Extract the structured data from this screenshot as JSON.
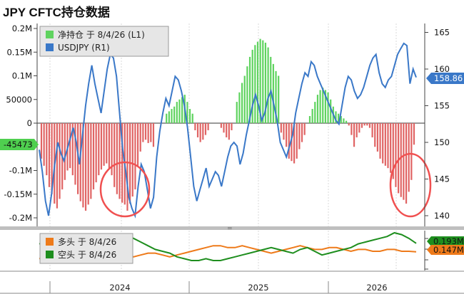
{
  "title": "JPY CFTC持仓数据",
  "colors": {
    "net_positive": "#5fd35f",
    "net_negative": "#e06464",
    "usdjpy": "#3a78c8",
    "long": "#ee7a1a",
    "short": "#1e8e1e",
    "annotation_circle": "#f05050",
    "net_tag": "#4fcf4f",
    "price_tag": "#3a78c8",
    "long_tag": "#ee7a1a",
    "short_tag": "#1e8e1e"
  },
  "chart_data": [
    {
      "type": "bar+line",
      "legend": [
        "净持仓 于 8/4/26 (L1)",
        "USDJPY (R1)"
      ],
      "legend_position": "top-left",
      "y_left_ticks": [
        "0.2M",
        "0.15M",
        "0.1M",
        "50000",
        "0",
        "-50000",
        "-0.1M",
        "-0.15M",
        "-0.2M"
      ],
      "y_left_range": [
        -200000,
        200000
      ],
      "y_right_ticks": [
        "165",
        "160",
        "155",
        "150",
        "145",
        "140"
      ],
      "y_right_range": [
        140,
        165
      ],
      "last_values": {
        "net": "-45473",
        "usdjpy": "158.86"
      },
      "net_positions": [
        -75000,
        -90000,
        -110000,
        -135000,
        -150000,
        -170000,
        -180000,
        -160000,
        -140000,
        -120000,
        -100000,
        -95000,
        -110000,
        -130000,
        -150000,
        -165000,
        -178000,
        -185000,
        -172000,
        -160000,
        -140000,
        -125000,
        -110000,
        -98000,
        -90000,
        -85000,
        -95000,
        -110000,
        -135000,
        -150000,
        -160000,
        -168000,
        -172000,
        -185000,
        -170000,
        -155000,
        -140000,
        -90000,
        -60000,
        -40000,
        -35000,
        -42000,
        -40000,
        -50000,
        0,
        0,
        0,
        0,
        20000,
        25000,
        30000,
        35000,
        45000,
        50000,
        55000,
        60000,
        45000,
        30000,
        20000,
        -15000,
        -30000,
        -40000,
        -35000,
        -25000,
        -15000,
        0,
        0,
        0,
        0,
        -10000,
        -20000,
        -30000,
        -35000,
        -15000,
        0,
        45000,
        65000,
        85000,
        100000,
        120000,
        140000,
        155000,
        165000,
        172000,
        178000,
        175000,
        170000,
        160000,
        140000,
        125000,
        110000,
        100000,
        -20000,
        -35000,
        -50000,
        -75000,
        -80000,
        -85000,
        -75000,
        -55000,
        -40000,
        -25000,
        0,
        15000,
        30000,
        45000,
        60000,
        70000,
        75000,
        70000,
        65000,
        50000,
        35000,
        25000,
        20000,
        15000,
        10000,
        5000,
        -5000,
        -25000,
        -50000,
        -30000,
        -20000,
        -10000,
        -5000,
        -5000,
        -10000,
        -30000,
        -50000,
        -60000,
        -75000,
        -85000,
        -90000,
        -95000,
        -105000,
        -118000,
        -135000,
        -148000,
        -156000,
        -162000,
        -170000,
        -145000,
        -120000,
        -45473
      ],
      "usdjpy": [
        149,
        146,
        142,
        140,
        143,
        147,
        150,
        148.5,
        147.5,
        149,
        150.5,
        152,
        150,
        147,
        151,
        155,
        158,
        160.5,
        158,
        156,
        154,
        157,
        160,
        162,
        161.5,
        159,
        154,
        149,
        146,
        142.5,
        141,
        140,
        144,
        147,
        146,
        143.5,
        141,
        142.5,
        148,
        151.5,
        154,
        156,
        155,
        157,
        159,
        158.5,
        157,
        155,
        152,
        148,
        144,
        142,
        143.5,
        145,
        146.5,
        144,
        145,
        146,
        145.5,
        144,
        146,
        148,
        149.5,
        150,
        149.5,
        147,
        148.5,
        151,
        153,
        155,
        156.5,
        155,
        153,
        154,
        156,
        157,
        155,
        153,
        150,
        149,
        148,
        149.5,
        151,
        154,
        156,
        158,
        159.5,
        159,
        161,
        160.5,
        159,
        158,
        157,
        156,
        155,
        154,
        153,
        152.5,
        155,
        157.5,
        159,
        158.5,
        157,
        156,
        156.5,
        157.5,
        159,
        160.5,
        161.5,
        162,
        159.5,
        158,
        157.5,
        158.5,
        159,
        160.5,
        162,
        162.8,
        163.5,
        163.2,
        158,
        160,
        158.86
      ],
      "year_labels": [
        "2024",
        "2025",
        "2026"
      ]
    },
    {
      "type": "line",
      "legend": [
        "多头 于 8/4/26",
        "空头 于 8/4/26"
      ],
      "legend_position": "top-left",
      "last_values": {
        "long": "0.147M",
        "short": "0.193M"
      },
      "series": [
        {
          "name": "多头 于 8/4/26",
          "values": [
            0.11,
            0.12,
            0.13,
            0.12,
            0.11,
            0.12,
            0.13,
            0.14,
            0.13,
            0.12,
            0.13,
            0.14,
            0.13,
            0.12,
            0.13,
            0.14,
            0.14,
            0.13,
            0.12,
            0.13,
            0.14,
            0.15,
            0.16,
            0.17,
            0.18,
            0.18,
            0.17,
            0.17,
            0.18,
            0.17,
            0.16,
            0.15,
            0.14,
            0.15,
            0.16,
            0.17,
            0.18,
            0.17,
            0.16,
            0.16,
            0.17,
            0.17,
            0.16,
            0.15,
            0.16,
            0.16,
            0.15,
            0.15,
            0.16,
            0.16,
            0.15,
            0.15,
            0.147
          ]
        },
        {
          "name": "空头 于 8/4/26",
          "values": [
            0.19,
            0.2,
            0.22,
            0.23,
            0.23,
            0.22,
            0.21,
            0.2,
            0.21,
            0.22,
            0.23,
            0.24,
            0.24,
            0.22,
            0.2,
            0.18,
            0.16,
            0.15,
            0.14,
            0.12,
            0.11,
            0.1,
            0.1,
            0.11,
            0.1,
            0.1,
            0.11,
            0.12,
            0.13,
            0.14,
            0.15,
            0.16,
            0.17,
            0.16,
            0.15,
            0.14,
            0.16,
            0.17,
            0.15,
            0.13,
            0.14,
            0.15,
            0.16,
            0.17,
            0.19,
            0.2,
            0.21,
            0.22,
            0.23,
            0.25,
            0.24,
            0.22,
            0.193
          ]
        }
      ]
    }
  ]
}
